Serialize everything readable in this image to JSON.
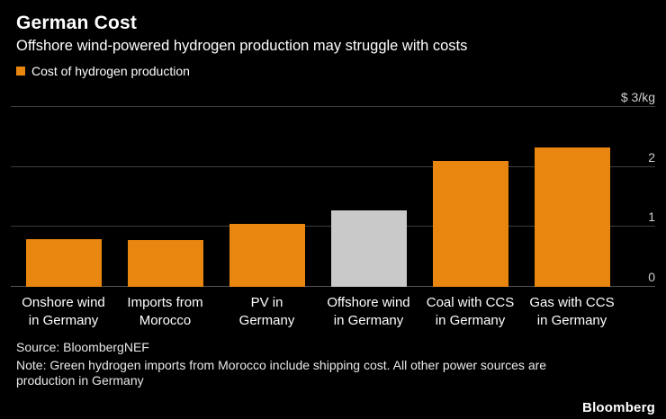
{
  "header": {
    "title": "German Cost",
    "subtitle": "Offshore wind-powered hydrogen production may struggle with costs",
    "legend": {
      "label": "Cost of hydrogen production",
      "color": "#E8860F"
    }
  },
  "chart_data": {
    "type": "bar",
    "title": "German Cost",
    "subtitle": "Offshore wind-powered hydrogen production may struggle with costs",
    "categories": [
      "Onshore wind\nin Germany",
      "Imports from\nMorocco",
      "PV in\nGermany",
      "Offshore wind\nin Germany",
      "Coal with CCS\nin Germany",
      "Gas with CCS\nin Germany"
    ],
    "values": [
      0.8,
      0.78,
      1.05,
      1.27,
      2.1,
      2.33
    ],
    "bar_colors": [
      "#E8860F",
      "#E8860F",
      "#E8860F",
      "#C9C9C9",
      "#E8860F",
      "#E8860F"
    ],
    "highlighted_category": "Offshore wind in Germany",
    "unit": "$/kg",
    "xlabel": "",
    "ylabel": "$ 3/kg",
    "ylim": [
      0,
      3
    ],
    "yticks": [
      {
        "value": 0,
        "label": "0"
      },
      {
        "value": 1,
        "label": "1"
      },
      {
        "value": 2,
        "label": "2"
      },
      {
        "value": 3,
        "label": "$ 3/kg"
      }
    ],
    "grid": true,
    "legend_position": "top-left",
    "legend_entries": [
      "Cost of hydrogen production"
    ]
  },
  "footer": {
    "source": "Source: BloombergNEF",
    "note": "Note: Green hydrogen imports from Morocco include shipping cost. All other power sources are production in Germany",
    "brand": "Bloomberg"
  }
}
